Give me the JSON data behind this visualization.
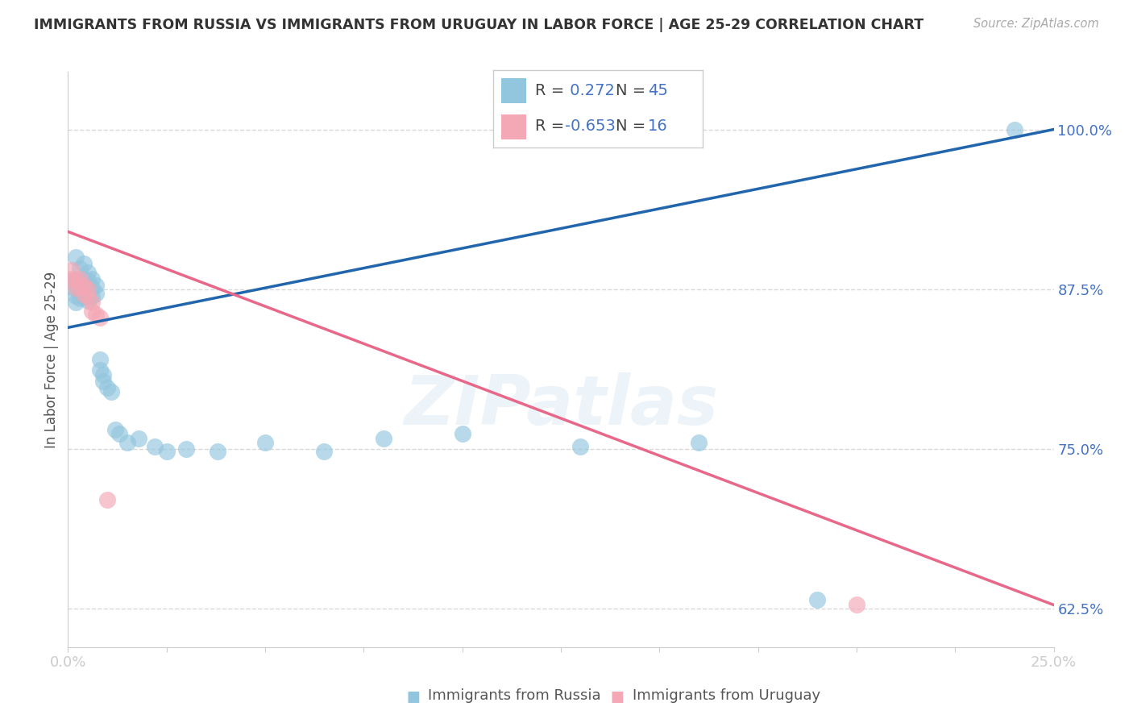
{
  "title": "IMMIGRANTS FROM RUSSIA VS IMMIGRANTS FROM URUGUAY IN LABOR FORCE | AGE 25-29 CORRELATION CHART",
  "source": "Source: ZipAtlas.com",
  "ylabel": "In Labor Force | Age 25-29",
  "xlim": [
    0.0,
    0.25
  ],
  "ylim": [
    0.595,
    1.045
  ],
  "xticks": [
    0.0,
    0.025,
    0.05,
    0.075,
    0.1,
    0.125,
    0.15,
    0.175,
    0.2,
    0.225,
    0.25
  ],
  "yticks": [
    0.625,
    0.75,
    0.875,
    1.0
  ],
  "xticklabels_show": [
    "0.0%",
    "25.0%"
  ],
  "yticklabels": [
    "62.5%",
    "75.0%",
    "87.5%",
    "100.0%"
  ],
  "russia_R": 0.272,
  "russia_N": 45,
  "uruguay_R": -0.653,
  "uruguay_N": 16,
  "russia_color": "#92c5de",
  "uruguay_color": "#f4a7b4",
  "russia_line_color": "#2166ac",
  "uruguay_line_color": "#e8688a",
  "russia_points_x": [
    0.001,
    0.001,
    0.002,
    0.002,
    0.002,
    0.003,
    0.003,
    0.003,
    0.003,
    0.004,
    0.004,
    0.004,
    0.004,
    0.005,
    0.005,
    0.005,
    0.005,
    0.005,
    0.006,
    0.006,
    0.006,
    0.007,
    0.007,
    0.008,
    0.008,
    0.009,
    0.009,
    0.01,
    0.011,
    0.012,
    0.013,
    0.015,
    0.018,
    0.022,
    0.025,
    0.03,
    0.038,
    0.05,
    0.065,
    0.08,
    0.1,
    0.13,
    0.16,
    0.19,
    0.24
  ],
  "russia_points_y": [
    0.882,
    0.877,
    0.87,
    0.865,
    0.9,
    0.878,
    0.873,
    0.868,
    0.891,
    0.883,
    0.875,
    0.869,
    0.895,
    0.877,
    0.871,
    0.866,
    0.882,
    0.888,
    0.876,
    0.869,
    0.883,
    0.878,
    0.872,
    0.82,
    0.812,
    0.808,
    0.803,
    0.798,
    0.795,
    0.765,
    0.762,
    0.755,
    0.758,
    0.752,
    0.748,
    0.75,
    0.748,
    0.755,
    0.748,
    0.758,
    0.762,
    0.752,
    0.755,
    0.632,
    1.0
  ],
  "uruguay_points_x": [
    0.001,
    0.001,
    0.002,
    0.002,
    0.003,
    0.003,
    0.004,
    0.004,
    0.005,
    0.005,
    0.006,
    0.006,
    0.007,
    0.008,
    0.01,
    0.2
  ],
  "uruguay_points_y": [
    0.89,
    0.883,
    0.882,
    0.876,
    0.883,
    0.877,
    0.878,
    0.871,
    0.875,
    0.869,
    0.865,
    0.858,
    0.855,
    0.853,
    0.71,
    0.628
  ],
  "russia_line_x0": 0.0,
  "russia_line_y0": 0.845,
  "russia_line_x1": 0.25,
  "russia_line_y1": 1.0,
  "uruguay_line_x0": 0.0,
  "uruguay_line_y0": 0.92,
  "uruguay_line_x1": 0.25,
  "uruguay_line_y1": 0.628,
  "watermark": "ZIPatlas",
  "background_color": "#ffffff",
  "grid_color": "#d8d8d8",
  "legend_russia_label": "R =  0.272   N = 45",
  "legend_uruguay_label": "R = -0.653   N = 16",
  "bottom_legend_russia": "Immigrants from Russia",
  "bottom_legend_uruguay": "Immigrants from Uruguay"
}
